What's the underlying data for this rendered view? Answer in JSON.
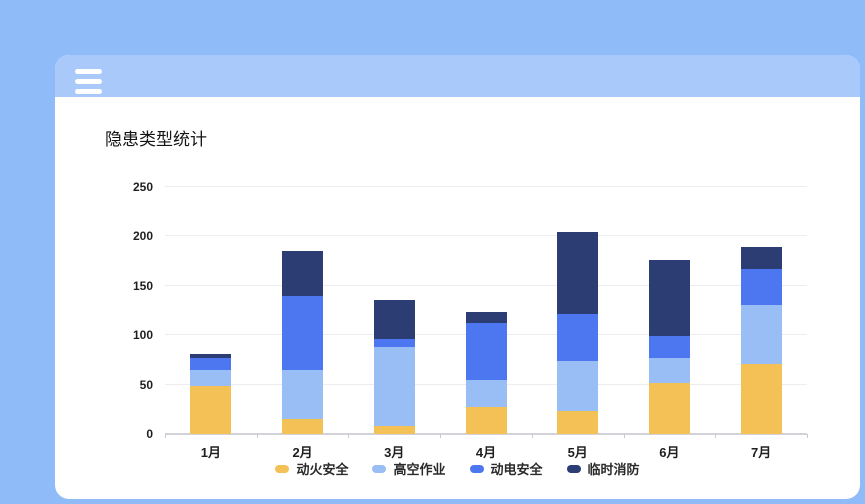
{
  "app": {
    "menu_icon": "hamburger-menu"
  },
  "card": {
    "title": "隐患类型统计"
  },
  "colors": {
    "page_background": "#8FBBF9",
    "header_background": "#A9C9FB",
    "card_background": "#FFFFFF",
    "gridline": "#EDEDF1",
    "axis_line": "#D2D2D8",
    "tick": "#C9C9CF",
    "label_text": "#1F1F1F"
  },
  "chart_data": {
    "type": "bar",
    "stacked": true,
    "title": "隐患类型统计",
    "categories": [
      "1月",
      "2月",
      "3月",
      "4月",
      "5月",
      "6月",
      "7月"
    ],
    "series": [
      {
        "name": "动火安全",
        "color": "#F4C156",
        "values": [
          49,
          15,
          8,
          27,
          23,
          52,
          71
        ]
      },
      {
        "name": "高空作业",
        "color": "#99BEF5",
        "values": [
          16,
          50,
          80,
          28,
          51,
          25,
          60
        ]
      },
      {
        "name": "动电安全",
        "color": "#4C77F0",
        "values": [
          12,
          75,
          8,
          57,
          47,
          22,
          36
        ]
      },
      {
        "name": "临时消防",
        "color": "#2B3D72",
        "values": [
          4,
          45,
          40,
          12,
          83,
          77,
          22
        ]
      }
    ],
    "totals": [
      81,
      185,
      136,
      124,
      204,
      176,
      189
    ],
    "xlabel": "",
    "ylabel": "",
    "ylim": [
      0,
      250
    ],
    "y_ticks": [
      0,
      50,
      100,
      150,
      200,
      250
    ],
    "grid": true,
    "legend_position": "bottom"
  }
}
